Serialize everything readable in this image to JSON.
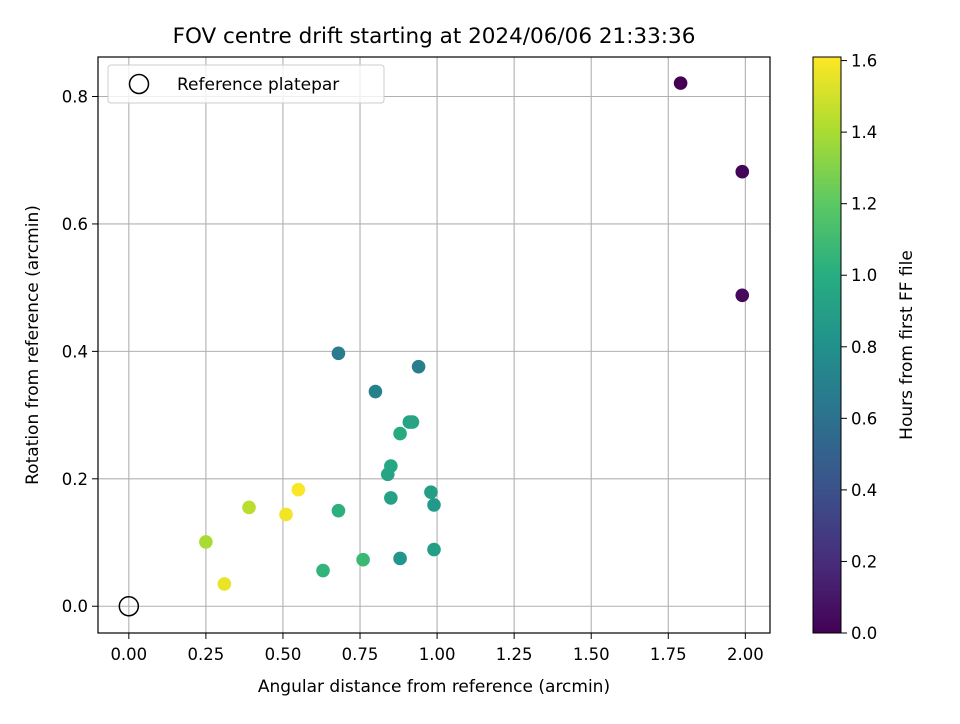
{
  "chart_data": {
    "type": "scatter",
    "title": "FOV centre drift starting at 2024/06/06 21:33:36",
    "xlabel": "Angular distance from reference (arcmin)",
    "ylabel": "Rotation from reference (arcmin)",
    "xlim": [
      -0.1,
      2.08
    ],
    "ylim": [
      -0.042,
      0.862
    ],
    "xticks": [
      "0.00",
      "0.25",
      "0.50",
      "0.75",
      "1.00",
      "1.25",
      "1.50",
      "1.75",
      "2.00"
    ],
    "xtick_values": [
      0,
      0.25,
      0.5,
      0.75,
      1.0,
      1.25,
      1.5,
      1.75,
      2.0
    ],
    "yticks": [
      "0.0",
      "0.2",
      "0.4",
      "0.6",
      "0.8"
    ],
    "ytick_values": [
      0,
      0.2,
      0.4,
      0.6,
      0.8
    ],
    "grid": true,
    "legend": {
      "position": "top-left",
      "label": "Reference platepar"
    },
    "reference_point": {
      "x": 0.0,
      "y": 0.0
    },
    "colorbar": {
      "label": "Hours from first FF file",
      "range": [
        0,
        1.61
      ],
      "ticks": [
        "0.0",
        "0.2",
        "0.4",
        "0.6",
        "0.8",
        "1.0",
        "1.2",
        "1.4",
        "1.6"
      ],
      "tick_values": [
        0,
        0.2,
        0.4,
        0.6,
        0.8,
        1.0,
        1.2,
        1.4,
        1.6
      ],
      "colormap": "viridis"
    },
    "points": [
      {
        "x": 1.79,
        "y": 0.821,
        "c": 0.0
      },
      {
        "x": 1.99,
        "y": 0.682,
        "c": 0.02
      },
      {
        "x": 1.99,
        "y": 0.488,
        "c": 0.04
      },
      {
        "x": 0.68,
        "y": 0.397,
        "c": 0.66
      },
      {
        "x": 0.94,
        "y": 0.376,
        "c": 0.68
      },
      {
        "x": 0.8,
        "y": 0.337,
        "c": 0.7
      },
      {
        "x": 0.91,
        "y": 0.289,
        "c": 0.92
      },
      {
        "x": 0.92,
        "y": 0.289,
        "c": 0.94
      },
      {
        "x": 0.88,
        "y": 0.271,
        "c": 0.98
      },
      {
        "x": 0.85,
        "y": 0.22,
        "c": 0.96
      },
      {
        "x": 0.84,
        "y": 0.207,
        "c": 0.94
      },
      {
        "x": 0.98,
        "y": 0.179,
        "c": 0.9
      },
      {
        "x": 0.85,
        "y": 0.17,
        "c": 0.92
      },
      {
        "x": 0.99,
        "y": 0.159,
        "c": 0.86
      },
      {
        "x": 0.68,
        "y": 0.15,
        "c": 1.02
      },
      {
        "x": 0.99,
        "y": 0.089,
        "c": 0.9
      },
      {
        "x": 0.76,
        "y": 0.073,
        "c": 1.08
      },
      {
        "x": 0.88,
        "y": 0.075,
        "c": 0.84
      },
      {
        "x": 0.63,
        "y": 0.056,
        "c": 1.04
      },
      {
        "x": 0.55,
        "y": 0.183,
        "c": 1.6
      },
      {
        "x": 0.51,
        "y": 0.144,
        "c": 1.58
      },
      {
        "x": 0.39,
        "y": 0.155,
        "c": 1.44
      },
      {
        "x": 0.25,
        "y": 0.101,
        "c": 1.4
      },
      {
        "x": 0.31,
        "y": 0.035,
        "c": 1.56
      }
    ]
  }
}
